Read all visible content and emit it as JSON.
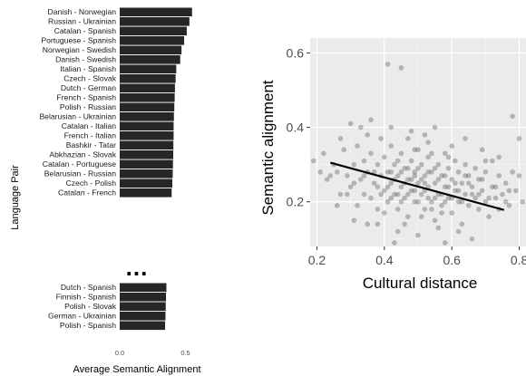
{
  "chart_data": [
    {
      "type": "bar",
      "orientation": "horizontal",
      "ylabel": "Language Pair",
      "xlabel": "Average Semantic Alignment",
      "xlim": [
        0,
        0.6
      ],
      "xticks": [
        "0.0",
        "0.5"
      ],
      "bar_color": "#262626",
      "top_group": {
        "categories": [
          "Danish - Norwegian",
          "Russian - Ukrainian",
          "Catalan - Spanish",
          "Portuguese - Spanish",
          "Norwegian - Swedish",
          "Danish - Swedish",
          "Italian - Spanish",
          "Czech - Slovak",
          "Dutch - German",
          "French - Spanish",
          "Polish - Russian",
          "Belarusian - Ukrainian",
          "Catalan - Italian",
          "French - Italian",
          "Bashkir - Tatar",
          "Abkhazian - Slovak",
          "Catalan - Portuguese",
          "Belarusian - Russian",
          "Czech - Polish",
          "Catalan - French"
        ],
        "values": [
          0.55,
          0.53,
          0.51,
          0.49,
          0.47,
          0.46,
          0.43,
          0.425,
          0.42,
          0.418,
          0.415,
          0.412,
          0.41,
          0.41,
          0.408,
          0.407,
          0.405,
          0.403,
          0.4,
          0.395
        ]
      },
      "separator": "...",
      "bottom_group": {
        "categories": [
          "Dutch - Spanish",
          "Finnish - Spanish",
          "Polish - Slovak",
          "German - Ukrainian",
          "Polish - Spanish"
        ],
        "values": [
          0.355,
          0.352,
          0.35,
          0.348,
          0.345
        ]
      }
    },
    {
      "type": "scatter",
      "xlabel": "Cultural distance",
      "ylabel": "Semantic alignment",
      "xlim": [
        0.18,
        0.82
      ],
      "ylim": [
        0.08,
        0.64
      ],
      "xticks": [
        0.2,
        0.4,
        0.6,
        0.8
      ],
      "xtick_labels": [
        "0.2",
        "0.4",
        "0.6",
        "0.8"
      ],
      "yticks": [
        0.2,
        0.4,
        0.6
      ],
      "ytick_labels": [
        "0.2",
        "0.4",
        "0.6"
      ],
      "grid": true,
      "panel_background": "#ebebeb",
      "point_color": "#333333",
      "point_alpha": 0.3,
      "trend_line": {
        "x": [
          0.24,
          0.755
        ],
        "y": [
          0.305,
          0.178
        ],
        "color": "#000000"
      },
      "points": [
        [
          0.22,
          0.33
        ],
        [
          0.23,
          0.26
        ],
        [
          0.25,
          0.3
        ],
        [
          0.26,
          0.28
        ],
        [
          0.27,
          0.22
        ],
        [
          0.28,
          0.34
        ],
        [
          0.29,
          0.27
        ],
        [
          0.3,
          0.24
        ],
        [
          0.31,
          0.3
        ],
        [
          0.32,
          0.35
        ],
        [
          0.32,
          0.19
        ],
        [
          0.33,
          0.26
        ],
        [
          0.34,
          0.31
        ],
        [
          0.34,
          0.22
        ],
        [
          0.35,
          0.28
        ],
        [
          0.36,
          0.33
        ],
        [
          0.36,
          0.21
        ],
        [
          0.37,
          0.25
        ],
        [
          0.38,
          0.3
        ],
        [
          0.38,
          0.18
        ],
        [
          0.39,
          0.27
        ],
        [
          0.4,
          0.23
        ],
        [
          0.4,
          0.32
        ],
        [
          0.41,
          0.2
        ],
        [
          0.41,
          0.28
        ],
        [
          0.42,
          0.25
        ],
        [
          0.42,
          0.35
        ],
        [
          0.43,
          0.22
        ],
        [
          0.43,
          0.3
        ],
        [
          0.44,
          0.18
        ],
        [
          0.44,
          0.27
        ],
        [
          0.45,
          0.24
        ],
        [
          0.45,
          0.33
        ],
        [
          0.46,
          0.21
        ],
        [
          0.46,
          0.29
        ],
        [
          0.47,
          0.26
        ],
        [
          0.47,
          0.16
        ],
        [
          0.48,
          0.31
        ],
        [
          0.48,
          0.23
        ],
        [
          0.49,
          0.2
        ],
        [
          0.49,
          0.28
        ],
        [
          0.5,
          0.25
        ],
        [
          0.5,
          0.34
        ],
        [
          0.51,
          0.22
        ],
        [
          0.51,
          0.3
        ],
        [
          0.52,
          0.18
        ],
        [
          0.52,
          0.27
        ],
        [
          0.53,
          0.24
        ],
        [
          0.53,
          0.32
        ],
        [
          0.54,
          0.2
        ],
        [
          0.54,
          0.28
        ],
        [
          0.55,
          0.25
        ],
        [
          0.55,
          0.15
        ],
        [
          0.56,
          0.3
        ],
        [
          0.56,
          0.22
        ],
        [
          0.57,
          0.27
        ],
        [
          0.57,
          0.19
        ],
        [
          0.58,
          0.24
        ],
        [
          0.58,
          0.33
        ],
        [
          0.59,
          0.21
        ],
        [
          0.59,
          0.29
        ],
        [
          0.6,
          0.26
        ],
        [
          0.6,
          0.17
        ],
        [
          0.61,
          0.23
        ],
        [
          0.61,
          0.31
        ],
        [
          0.62,
          0.2
        ],
        [
          0.62,
          0.28
        ],
        [
          0.63,
          0.25
        ],
        [
          0.63,
          0.14
        ],
        [
          0.64,
          0.22
        ],
        [
          0.64,
          0.3
        ],
        [
          0.65,
          0.19
        ],
        [
          0.65,
          0.27
        ],
        [
          0.66,
          0.24
        ],
        [
          0.67,
          0.21
        ],
        [
          0.67,
          0.29
        ],
        [
          0.68,
          0.18
        ],
        [
          0.68,
          0.26
        ],
        [
          0.69,
          0.23
        ],
        [
          0.7,
          0.2
        ],
        [
          0.7,
          0.28
        ],
        [
          0.71,
          0.16
        ],
        [
          0.72,
          0.24
        ],
        [
          0.72,
          0.31
        ],
        [
          0.73,
          0.21
        ],
        [
          0.74,
          0.18
        ],
        [
          0.74,
          0.27
        ],
        [
          0.75,
          0.22
        ],
        [
          0.76,
          0.25
        ],
        [
          0.77,
          0.19
        ],
        [
          0.78,
          0.28
        ],
        [
          0.79,
          0.23
        ],
        [
          0.8,
          0.27
        ],
        [
          0.81,
          0.2
        ],
        [
          0.8,
          0.37
        ],
        [
          0.78,
          0.43
        ],
        [
          0.7,
          0.31
        ],
        [
          0.33,
          0.4
        ],
        [
          0.36,
          0.42
        ],
        [
          0.41,
          0.57
        ],
        [
          0.45,
          0.56
        ],
        [
          0.3,
          0.41
        ],
        [
          0.35,
          0.38
        ],
        [
          0.39,
          0.37
        ],
        [
          0.42,
          0.4
        ],
        [
          0.48,
          0.39
        ],
        [
          0.52,
          0.38
        ],
        [
          0.55,
          0.4
        ],
        [
          0.38,
          0.14
        ],
        [
          0.44,
          0.12
        ],
        [
          0.5,
          0.11
        ],
        [
          0.56,
          0.13
        ],
        [
          0.62,
          0.12
        ],
        [
          0.66,
          0.1
        ],
        [
          0.43,
          0.09
        ],
        [
          0.58,
          0.09
        ],
        [
          0.27,
          0.37
        ],
        [
          0.26,
          0.19
        ],
        [
          0.31,
          0.15
        ],
        [
          0.47,
          0.37
        ],
        [
          0.53,
          0.36
        ],
        [
          0.6,
          0.35
        ],
        [
          0.64,
          0.37
        ],
        [
          0.69,
          0.34
        ],
        [
          0.74,
          0.32
        ],
        [
          0.46,
          0.14
        ],
        [
          0.51,
          0.16
        ],
        [
          0.57,
          0.17
        ],
        [
          0.4,
          0.17
        ],
        [
          0.35,
          0.14
        ],
        [
          0.44,
          0.31
        ],
        [
          0.49,
          0.34
        ],
        [
          0.54,
          0.33
        ],
        [
          0.59,
          0.32
        ],
        [
          0.42,
          0.28
        ],
        [
          0.47,
          0.29
        ],
        [
          0.5,
          0.29
        ],
        [
          0.53,
          0.21
        ],
        [
          0.48,
          0.26
        ],
        [
          0.45,
          0.2
        ],
        [
          0.58,
          0.27
        ],
        [
          0.61,
          0.25
        ],
        [
          0.55,
          0.29
        ],
        [
          0.52,
          0.23
        ],
        [
          0.49,
          0.23
        ],
        [
          0.46,
          0.25
        ],
        [
          0.57,
          0.22
        ],
        [
          0.6,
          0.21
        ],
        [
          0.63,
          0.2
        ],
        [
          0.66,
          0.22
        ],
        [
          0.5,
          0.2
        ],
        [
          0.54,
          0.18
        ],
        [
          0.56,
          0.26
        ],
        [
          0.62,
          0.23
        ],
        [
          0.44,
          0.22
        ],
        [
          0.41,
          0.24
        ],
        [
          0.39,
          0.22
        ],
        [
          0.37,
          0.28
        ],
        [
          0.43,
          0.26
        ],
        [
          0.47,
          0.22
        ],
        [
          0.51,
          0.26
        ],
        [
          0.53,
          0.28
        ],
        [
          0.58,
          0.2
        ],
        [
          0.65,
          0.25
        ],
        [
          0.69,
          0.26
        ],
        [
          0.71,
          0.21
        ],
        [
          0.73,
          0.24
        ],
        [
          0.76,
          0.2
        ],
        [
          0.77,
          0.23
        ],
        [
          0.68,
          0.22
        ],
        [
          0.64,
          0.27
        ],
        [
          0.59,
          0.24
        ],
        [
          0.55,
          0.21
        ],
        [
          0.52,
          0.25
        ],
        [
          0.49,
          0.27
        ],
        [
          0.45,
          0.28
        ],
        [
          0.42,
          0.21
        ],
        [
          0.38,
          0.24
        ],
        [
          0.34,
          0.27
        ],
        [
          0.31,
          0.25
        ],
        [
          0.29,
          0.22
        ],
        [
          0.24,
          0.27
        ],
        [
          0.21,
          0.28
        ],
        [
          0.19,
          0.31
        ]
      ]
    }
  ]
}
